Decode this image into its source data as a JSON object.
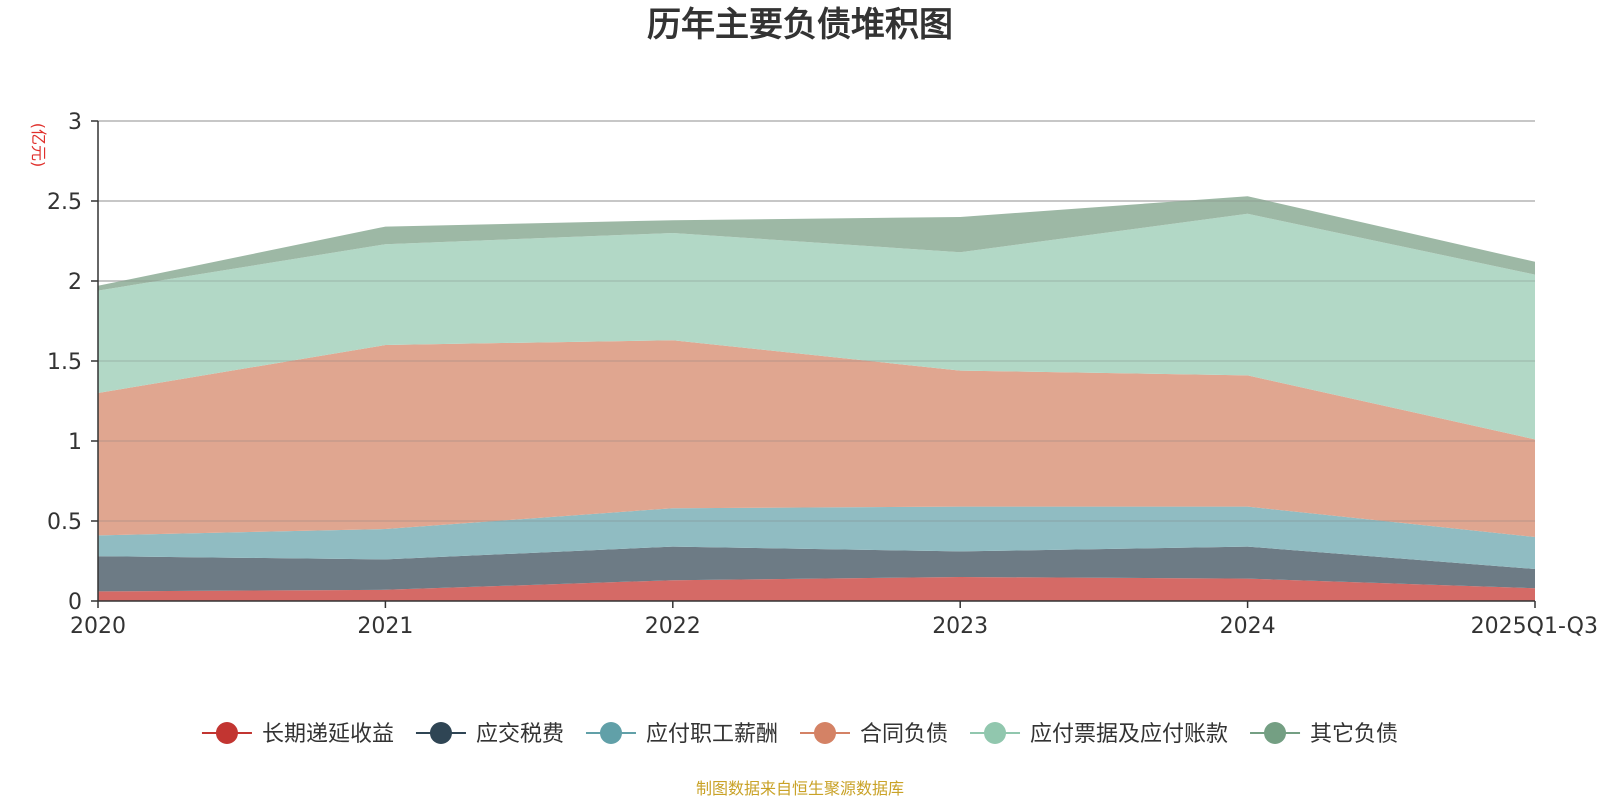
{
  "chart_data": {
    "type": "area",
    "stacked": true,
    "title": "历年主要负债堆积图",
    "unit_label": "(亿元)",
    "categories": [
      "2020",
      "2021",
      "2022",
      "2023",
      "2024",
      "2025Q1-Q3"
    ],
    "ylim": [
      0,
      3
    ],
    "yticks": [
      0,
      0.5,
      1,
      1.5,
      2,
      2.5,
      3
    ],
    "ytick_labels": [
      "0",
      "0.5",
      "1",
      "1.5",
      "2",
      "2.5",
      "3"
    ],
    "grid": true,
    "legend_position": "bottom",
    "series": [
      {
        "name": "长期递延收益",
        "color": "#c23531",
        "fill": "#d56a66",
        "values": [
          0.06,
          0.07,
          0.13,
          0.15,
          0.14,
          0.08
        ]
      },
      {
        "name": "应交税费",
        "color": "#2f4554",
        "fill": "#6d7b85",
        "values": [
          0.22,
          0.19,
          0.21,
          0.16,
          0.2,
          0.12
        ]
      },
      {
        "name": "应付职工薪酬",
        "color": "#61a0a8",
        "fill": "#90bcc2",
        "values": [
          0.13,
          0.19,
          0.24,
          0.28,
          0.25,
          0.2
        ]
      },
      {
        "name": "合同负债",
        "color": "#d48265",
        "fill": "#e0a690",
        "values": [
          0.89,
          1.15,
          1.05,
          0.85,
          0.82,
          0.61
        ]
      },
      {
        "name": "应付票据及应付账款",
        "color": "#91c7ae",
        "fill": "#b2d8c6",
        "values": [
          0.64,
          0.63,
          0.67,
          0.74,
          1.01,
          1.03
        ]
      },
      {
        "name": "其它负债",
        "color": "#749f83",
        "fill": "#9db8a5",
        "values": [
          0.03,
          0.11,
          0.08,
          0.22,
          0.11,
          0.08
        ]
      }
    ]
  },
  "footer": {
    "source": "制图数据来自恒生聚源数据库"
  }
}
